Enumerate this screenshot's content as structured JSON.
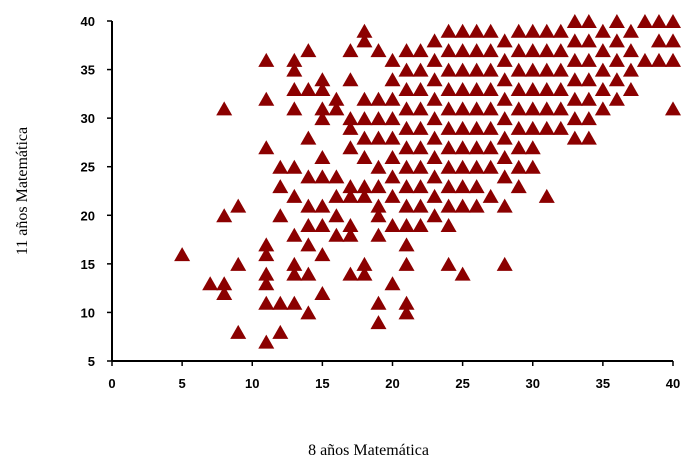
{
  "chart_data": {
    "type": "scatter",
    "title": "",
    "xlabel": "8 años Matemática",
    "ylabel": "11 años Matemática",
    "xlim": [
      0,
      40
    ],
    "ylim": [
      5,
      40
    ],
    "xticks": [
      0,
      5,
      10,
      15,
      20,
      25,
      30,
      35,
      40
    ],
    "yticks": [
      5,
      10,
      15,
      20,
      25,
      30,
      35,
      40
    ],
    "xtick_labels": [
      "0",
      "5",
      "10",
      "15",
      "20",
      "25",
      "30",
      "35",
      "40"
    ],
    "ytick_labels": [
      "5",
      "10",
      "15",
      "20",
      "25",
      "30",
      "35",
      "40"
    ],
    "grid": false,
    "legend": "none",
    "marker": "triangle",
    "marker_color": "#8b0000",
    "series": [
      {
        "points": [
          [
            5,
            16
          ],
          [
            7,
            13
          ],
          [
            8,
            31
          ],
          [
            8,
            20
          ],
          [
            8,
            13
          ],
          [
            8,
            12
          ],
          [
            9,
            21
          ],
          [
            9,
            15
          ],
          [
            9,
            8
          ],
          [
            11,
            36
          ],
          [
            11,
            32
          ],
          [
            11,
            27
          ],
          [
            11,
            17
          ],
          [
            11,
            16
          ],
          [
            11,
            14
          ],
          [
            11,
            13
          ],
          [
            11,
            11
          ],
          [
            11,
            7
          ],
          [
            12,
            25
          ],
          [
            12,
            23
          ],
          [
            12,
            20
          ],
          [
            12,
            11
          ],
          [
            12,
            8
          ],
          [
            13,
            36
          ],
          [
            13,
            35
          ],
          [
            13,
            33
          ],
          [
            13,
            31
          ],
          [
            13,
            25
          ],
          [
            13,
            22
          ],
          [
            13,
            18
          ],
          [
            13,
            15
          ],
          [
            13,
            14
          ],
          [
            13,
            11
          ],
          [
            14,
            37
          ],
          [
            14,
            33
          ],
          [
            14,
            28
          ],
          [
            14,
            24
          ],
          [
            14,
            21
          ],
          [
            14,
            19
          ],
          [
            14,
            17
          ],
          [
            14,
            14
          ],
          [
            14,
            10
          ],
          [
            15,
            34
          ],
          [
            15,
            33
          ],
          [
            15,
            31
          ],
          [
            15,
            30
          ],
          [
            15,
            26
          ],
          [
            15,
            24
          ],
          [
            15,
            21
          ],
          [
            15,
            19
          ],
          [
            15,
            16
          ],
          [
            15,
            12
          ],
          [
            16,
            32
          ],
          [
            16,
            31
          ],
          [
            16,
            24
          ],
          [
            16,
            22
          ],
          [
            16,
            20
          ],
          [
            16,
            18
          ],
          [
            17,
            37
          ],
          [
            17,
            34
          ],
          [
            17,
            30
          ],
          [
            17,
            29
          ],
          [
            17,
            27
          ],
          [
            17,
            23
          ],
          [
            17,
            22
          ],
          [
            17,
            19
          ],
          [
            17,
            18
          ],
          [
            17,
            14
          ],
          [
            18,
            39
          ],
          [
            18,
            38
          ],
          [
            18,
            32
          ],
          [
            18,
            30
          ],
          [
            18,
            28
          ],
          [
            18,
            26
          ],
          [
            18,
            23
          ],
          [
            18,
            22
          ],
          [
            18,
            15
          ],
          [
            18,
            14
          ],
          [
            19,
            37
          ],
          [
            19,
            32
          ],
          [
            19,
            30
          ],
          [
            19,
            28
          ],
          [
            19,
            25
          ],
          [
            19,
            23
          ],
          [
            19,
            21
          ],
          [
            19,
            20
          ],
          [
            19,
            18
          ],
          [
            19,
            11
          ],
          [
            19,
            9
          ],
          [
            20,
            36
          ],
          [
            20,
            34
          ],
          [
            20,
            32
          ],
          [
            20,
            30
          ],
          [
            20,
            28
          ],
          [
            20,
            26
          ],
          [
            20,
            24
          ],
          [
            20,
            22
          ],
          [
            20,
            19
          ],
          [
            20,
            13
          ],
          [
            21,
            37
          ],
          [
            21,
            35
          ],
          [
            21,
            33
          ],
          [
            21,
            31
          ],
          [
            21,
            29
          ],
          [
            21,
            27
          ],
          [
            21,
            25
          ],
          [
            21,
            23
          ],
          [
            21,
            21
          ],
          [
            21,
            19
          ],
          [
            21,
            17
          ],
          [
            21,
            15
          ],
          [
            21,
            11
          ],
          [
            21,
            10
          ],
          [
            22,
            37
          ],
          [
            22,
            35
          ],
          [
            22,
            33
          ],
          [
            22,
            31
          ],
          [
            22,
            29
          ],
          [
            22,
            27
          ],
          [
            22,
            25
          ],
          [
            22,
            23
          ],
          [
            22,
            21
          ],
          [
            22,
            19
          ],
          [
            23,
            38
          ],
          [
            23,
            36
          ],
          [
            23,
            34
          ],
          [
            23,
            32
          ],
          [
            23,
            30
          ],
          [
            23,
            28
          ],
          [
            23,
            26
          ],
          [
            23,
            24
          ],
          [
            23,
            22
          ],
          [
            23,
            20
          ],
          [
            24,
            39
          ],
          [
            24,
            37
          ],
          [
            24,
            35
          ],
          [
            24,
            33
          ],
          [
            24,
            31
          ],
          [
            24,
            29
          ],
          [
            24,
            27
          ],
          [
            24,
            25
          ],
          [
            24,
            23
          ],
          [
            24,
            21
          ],
          [
            24,
            19
          ],
          [
            24,
            15
          ],
          [
            25,
            39
          ],
          [
            25,
            37
          ],
          [
            25,
            35
          ],
          [
            25,
            33
          ],
          [
            25,
            31
          ],
          [
            25,
            29
          ],
          [
            25,
            27
          ],
          [
            25,
            25
          ],
          [
            25,
            23
          ],
          [
            25,
            21
          ],
          [
            25,
            14
          ],
          [
            26,
            39
          ],
          [
            26,
            37
          ],
          [
            26,
            35
          ],
          [
            26,
            33
          ],
          [
            26,
            31
          ],
          [
            26,
            29
          ],
          [
            26,
            27
          ],
          [
            26,
            25
          ],
          [
            26,
            23
          ],
          [
            26,
            21
          ],
          [
            27,
            39
          ],
          [
            27,
            37
          ],
          [
            27,
            35
          ],
          [
            27,
            33
          ],
          [
            27,
            31
          ],
          [
            27,
            29
          ],
          [
            27,
            27
          ],
          [
            27,
            25
          ],
          [
            27,
            22
          ],
          [
            28,
            38
          ],
          [
            28,
            36
          ],
          [
            28,
            34
          ],
          [
            28,
            32
          ],
          [
            28,
            30
          ],
          [
            28,
            28
          ],
          [
            28,
            26
          ],
          [
            28,
            24
          ],
          [
            28,
            21
          ],
          [
            28,
            15
          ],
          [
            29,
            39
          ],
          [
            29,
            37
          ],
          [
            29,
            35
          ],
          [
            29,
            33
          ],
          [
            29,
            31
          ],
          [
            29,
            29
          ],
          [
            29,
            27
          ],
          [
            29,
            25
          ],
          [
            29,
            23
          ],
          [
            30,
            39
          ],
          [
            30,
            37
          ],
          [
            30,
            35
          ],
          [
            30,
            33
          ],
          [
            30,
            31
          ],
          [
            30,
            29
          ],
          [
            30,
            27
          ],
          [
            30,
            25
          ],
          [
            31,
            39
          ],
          [
            31,
            37
          ],
          [
            31,
            35
          ],
          [
            31,
            33
          ],
          [
            31,
            31
          ],
          [
            31,
            29
          ],
          [
            31,
            22
          ],
          [
            32,
            39
          ],
          [
            32,
            37
          ],
          [
            32,
            35
          ],
          [
            32,
            33
          ],
          [
            32,
            31
          ],
          [
            32,
            29
          ],
          [
            33,
            40
          ],
          [
            33,
            38
          ],
          [
            33,
            36
          ],
          [
            33,
            34
          ],
          [
            33,
            32
          ],
          [
            33,
            30
          ],
          [
            33,
            28
          ],
          [
            34,
            40
          ],
          [
            34,
            38
          ],
          [
            34,
            36
          ],
          [
            34,
            34
          ],
          [
            34,
            32
          ],
          [
            34,
            30
          ],
          [
            34,
            28
          ],
          [
            35,
            39
          ],
          [
            35,
            37
          ],
          [
            35,
            35
          ],
          [
            35,
            33
          ],
          [
            35,
            31
          ],
          [
            36,
            40
          ],
          [
            36,
            38
          ],
          [
            36,
            36
          ],
          [
            36,
            34
          ],
          [
            36,
            32
          ],
          [
            37,
            39
          ],
          [
            37,
            37
          ],
          [
            37,
            35
          ],
          [
            37,
            33
          ],
          [
            38,
            40
          ],
          [
            38,
            36
          ],
          [
            39,
            40
          ],
          [
            39,
            38
          ],
          [
            39,
            36
          ],
          [
            40,
            40
          ],
          [
            40,
            38
          ],
          [
            40,
            36
          ],
          [
            40,
            31
          ]
        ]
      }
    ]
  }
}
